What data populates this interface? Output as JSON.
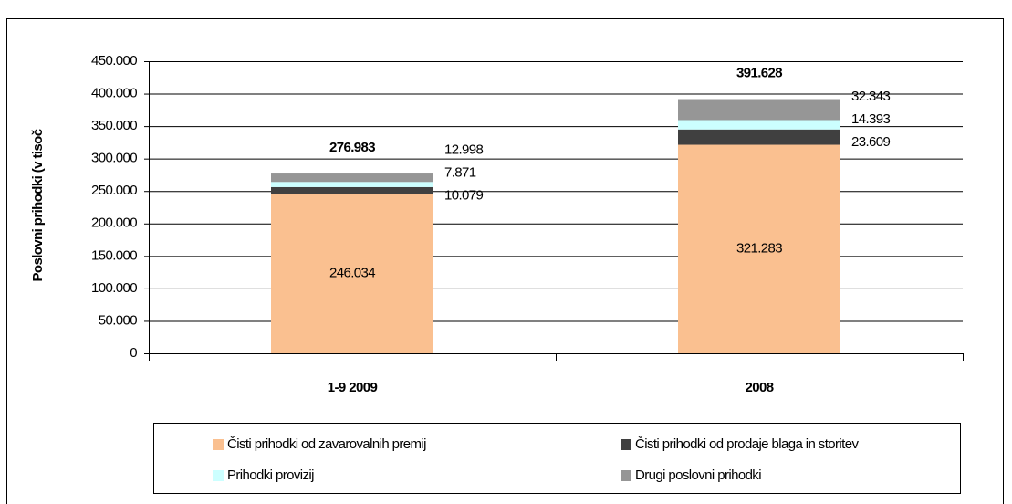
{
  "chart_data": {
    "type": "stacked_bar",
    "y_label": "Poslovni prihodki (v tisoč",
    "categories": [
      "1-9 2009",
      "2008"
    ],
    "series": [
      {
        "name": "Čisti prihodki od zavarovalnih premij",
        "color": "#fac090",
        "values": [
          246034,
          321283
        ],
        "value_labels": [
          "246.034",
          "321.283"
        ]
      },
      {
        "name": "Čisti prihodki od prodaje blaga in storitev",
        "color": "#404040",
        "values": [
          10079,
          23609
        ],
        "value_labels": [
          "10.079",
          "23.609"
        ]
      },
      {
        "name": "Prihodki provizij",
        "color": "#ccffff",
        "values": [
          7871,
          14393
        ],
        "value_labels": [
          "7.871",
          "14.393"
        ]
      },
      {
        "name": "Drugi poslovni prihodki",
        "color": "#969696",
        "values": [
          12998,
          32343
        ],
        "value_labels": [
          "12.998",
          "32.343"
        ]
      }
    ],
    "totals": {
      "values": [
        276983,
        391628
      ],
      "value_labels": [
        "276.983",
        "391.628"
      ]
    },
    "ylim": [
      0,
      450000
    ],
    "yticks": [
      0,
      {
        "value": 50000,
        "label": "50.000"
      },
      {
        "value": 100000,
        "label": "100.000"
      },
      {
        "value": 150000,
        "label": "150.000"
      },
      {
        "value": 200000,
        "label": "200.000"
      },
      {
        "value": 250000,
        "label": "250.000"
      },
      {
        "value": 300000,
        "label": "300.000"
      },
      {
        "value": 350000,
        "label": "350.000"
      },
      {
        "value": 400000,
        "label": "400.000"
      },
      {
        "value": 450000,
        "label": "450.000"
      }
    ],
    "grid": true,
    "legend": "bottom"
  }
}
